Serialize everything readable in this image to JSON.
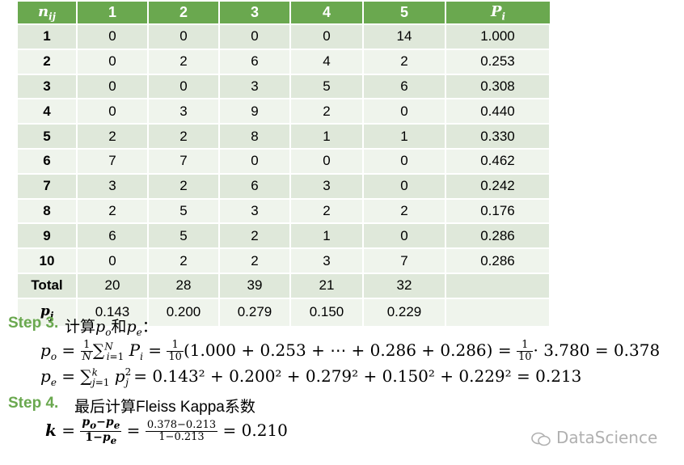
{
  "table": {
    "corner_label": "n",
    "corner_sub": "ij",
    "columns": [
      "1",
      "2",
      "3",
      "4",
      "5"
    ],
    "pi_header": "P",
    "pi_sub": "i",
    "rows": [
      {
        "label": "1",
        "values": [
          "0",
          "0",
          "0",
          "0",
          "14"
        ],
        "pi": "1.000"
      },
      {
        "label": "2",
        "values": [
          "0",
          "2",
          "6",
          "4",
          "2"
        ],
        "pi": "0.253"
      },
      {
        "label": "3",
        "values": [
          "0",
          "0",
          "3",
          "5",
          "6"
        ],
        "pi": "0.308"
      },
      {
        "label": "4",
        "values": [
          "0",
          "3",
          "9",
          "2",
          "0"
        ],
        "pi": "0.440"
      },
      {
        "label": "5",
        "values": [
          "2",
          "2",
          "8",
          "1",
          "1"
        ],
        "pi": "0.330"
      },
      {
        "label": "6",
        "values": [
          "7",
          "7",
          "0",
          "0",
          "0"
        ],
        "pi": "0.462"
      },
      {
        "label": "7",
        "values": [
          "3",
          "2",
          "6",
          "3",
          "0"
        ],
        "pi": "0.242"
      },
      {
        "label": "8",
        "values": [
          "2",
          "5",
          "3",
          "2",
          "2"
        ],
        "pi": "0.176"
      },
      {
        "label": "9",
        "values": [
          "6",
          "5",
          "2",
          "1",
          "0"
        ],
        "pi": "0.286"
      },
      {
        "label": "10",
        "values": [
          "0",
          "2",
          "2",
          "3",
          "7"
        ],
        "pi": "0.286"
      }
    ],
    "total_label": "Total",
    "totals": [
      "20",
      "28",
      "39",
      "21",
      "32"
    ],
    "pj_label": "p",
    "pj_sub": "j",
    "pj_values": [
      "0.143",
      "0.200",
      "0.279",
      "0.150",
      "0.229"
    ]
  },
  "step3": {
    "label": "Step 3.",
    "text": "计算",
    "and": "和",
    "colon": "：",
    "po_result": "= 0.378",
    "po_sum": "(1.000 + 0.253 + ⋯ + 0.286 + 0.286) =",
    "po_mult": "· 3.780",
    "pe_expr": "= 0.143² + 0.200² + 0.279² + 0.150² + 0.229² = 0.213"
  },
  "step4": {
    "label": "Step 4.",
    "text": "最后计算Fleiss Kappa系数",
    "num": "0.378−0.213",
    "den": "1−0.213",
    "result": "= 0.210"
  },
  "watermark": "DataScience",
  "colors": {
    "header": "#6aa84f",
    "row_odd": "#dfe8da",
    "row_even": "#eff4ec"
  }
}
